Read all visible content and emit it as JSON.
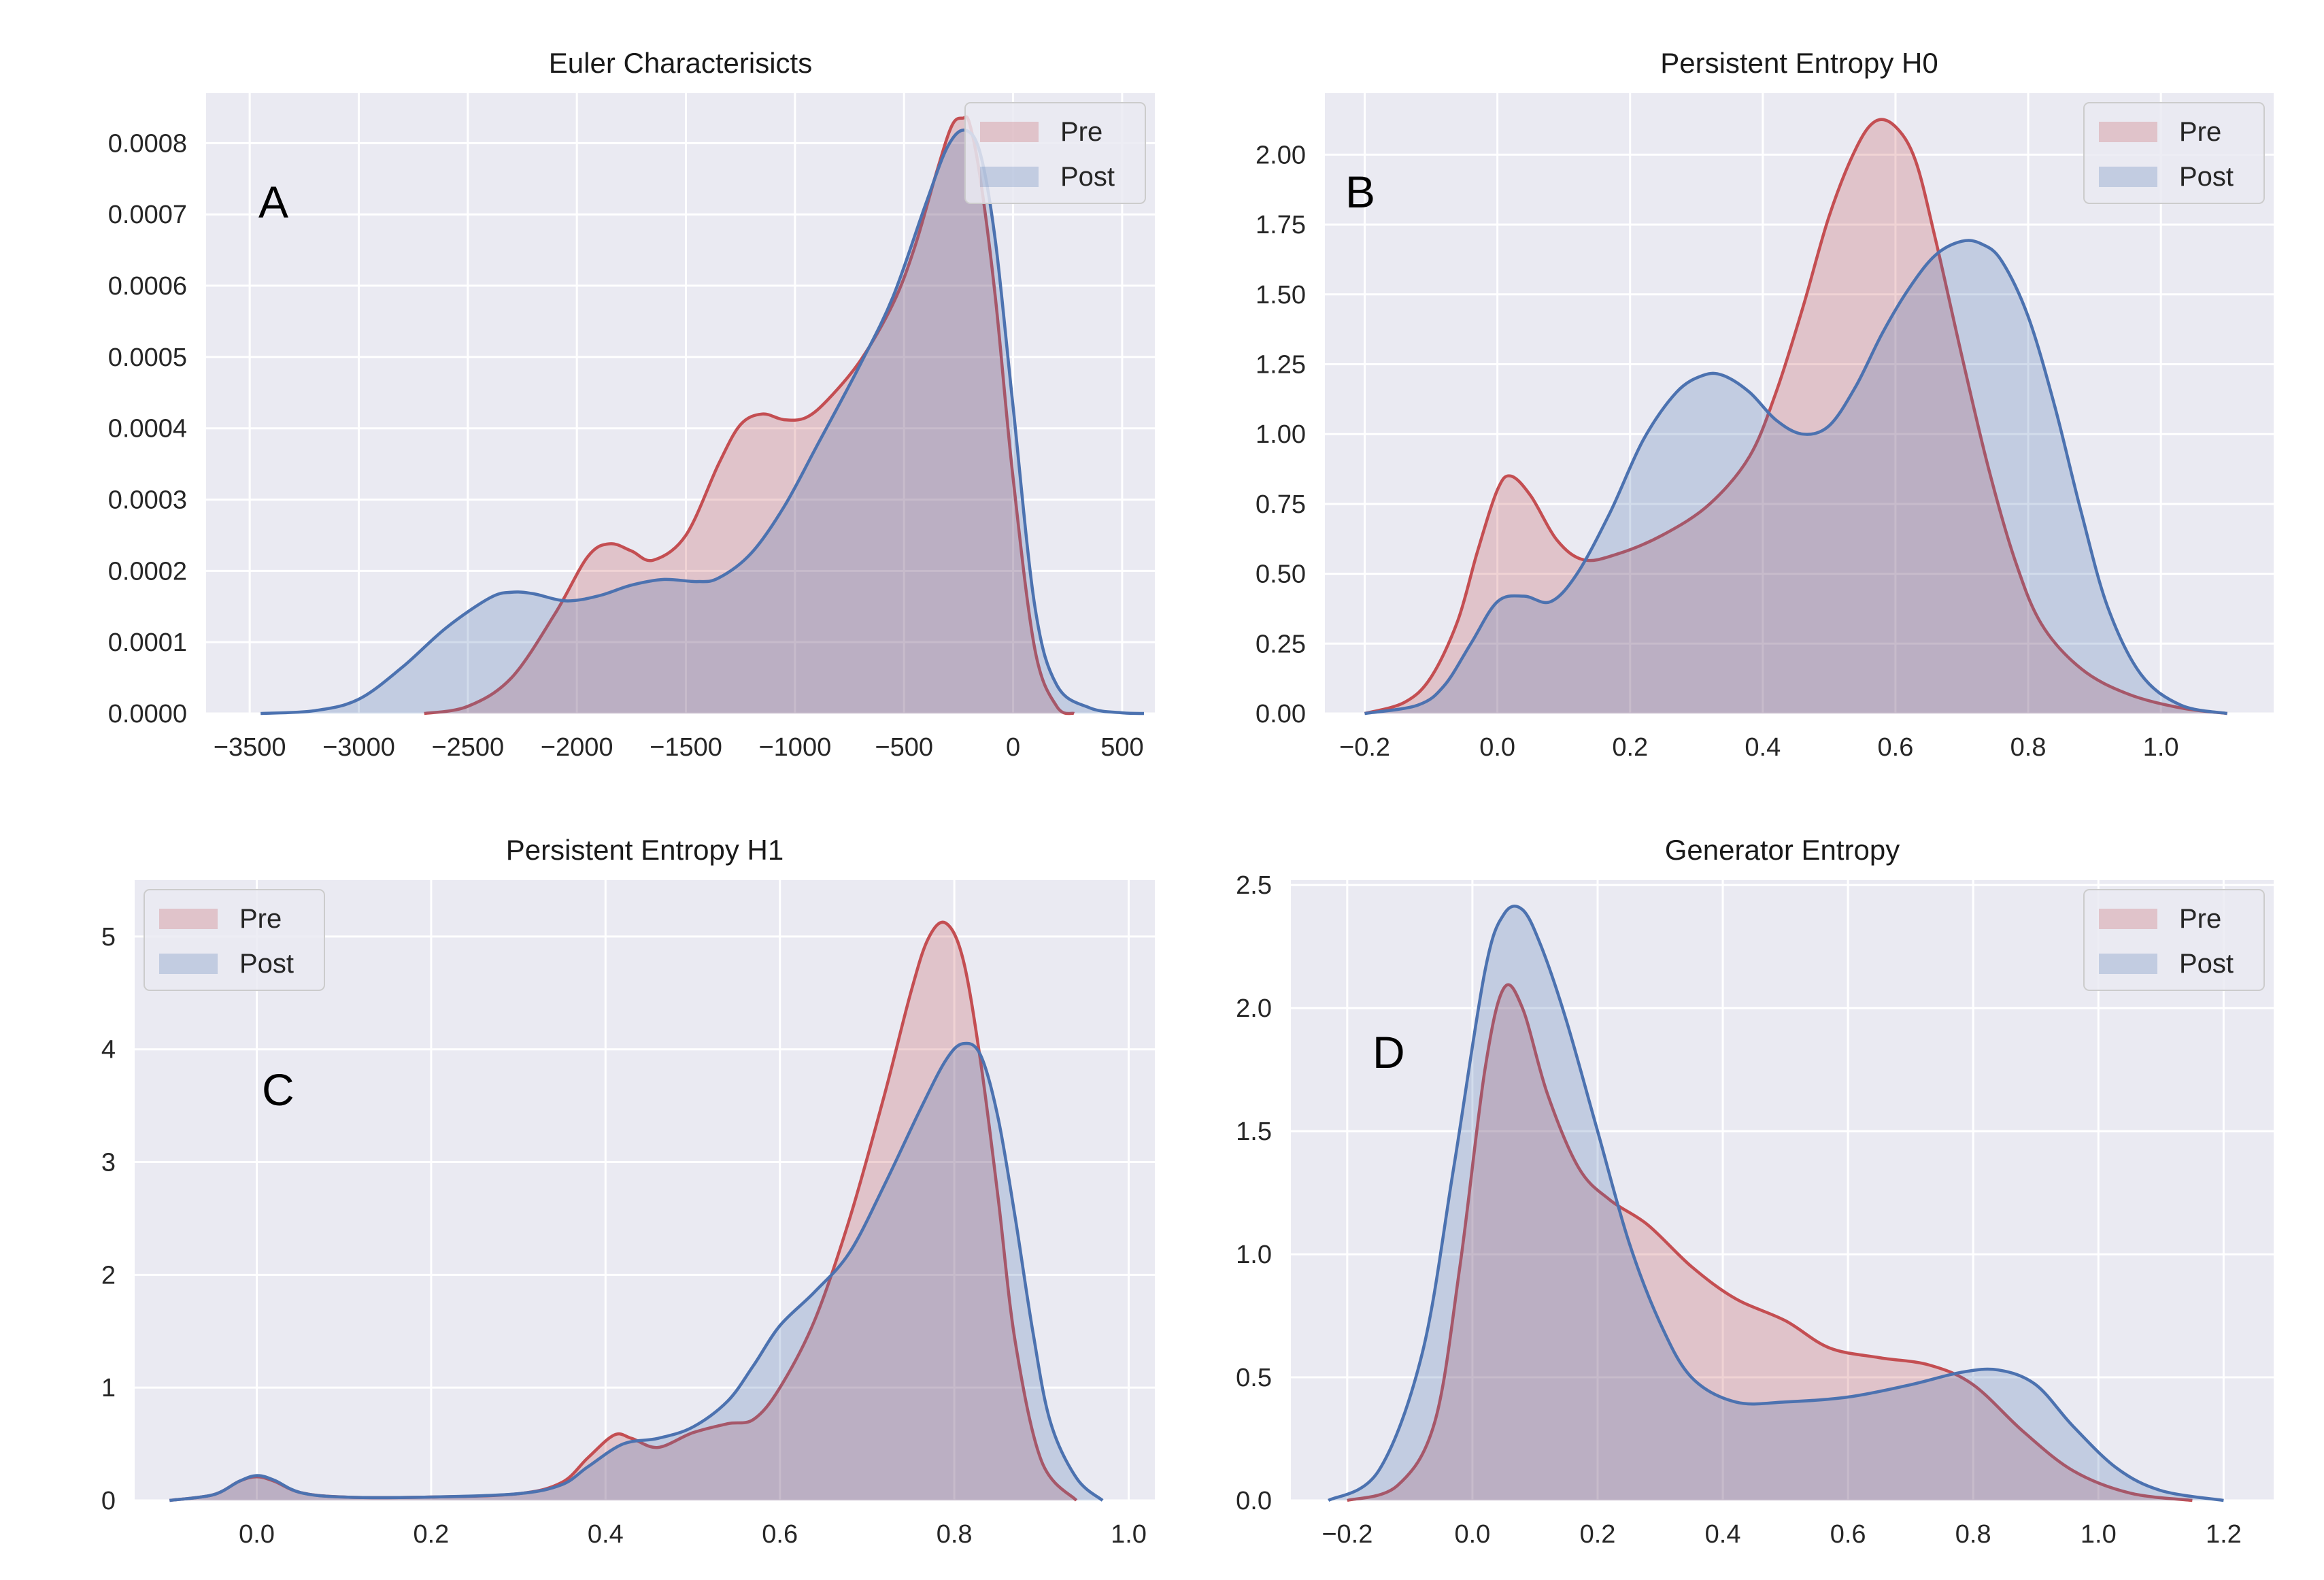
{
  "figure": {
    "background": "#ffffff",
    "axes_background": "#eaeaf2",
    "grid_color": "#ffffff"
  },
  "colors": {
    "pre_line": "#c44e52",
    "pre_fill": "#c44e52",
    "post_line": "#4c72b0",
    "post_fill": "#4c72b0"
  },
  "legend": {
    "pre": "Pre",
    "post": "Post"
  },
  "chart_data": [
    {
      "type": "area",
      "panel_label": "A",
      "title": "Euler Characterisicts",
      "xlabel": "",
      "ylabel": "",
      "xlim": [
        -3700,
        650
      ],
      "ylim": [
        0,
        0.00087
      ],
      "xticks": [
        -3500,
        -3000,
        -2500,
        -2000,
        -1500,
        -1000,
        -500,
        0,
        500
      ],
      "xtick_labels": [
        "−3500",
        "−3000",
        "−2500",
        "−2000",
        "−1500",
        "−1000",
        "−500",
        "0",
        "500"
      ],
      "yticks": [
        0,
        0.0001,
        0.0002,
        0.0003,
        0.0004,
        0.0005,
        0.0006,
        0.0007,
        0.0008
      ],
      "ytick_labels": [
        "0.0000",
        "0.0001",
        "0.0002",
        "0.0003",
        "0.0004",
        "0.0005",
        "0.0006",
        "0.0007",
        "0.0008"
      ],
      "legend_position": "top-right",
      "grid": true,
      "series": [
        {
          "name": "Pre",
          "x": [
            -2700,
            -2500,
            -2300,
            -2100,
            -1950,
            -1850,
            -1750,
            -1650,
            -1500,
            -1350,
            -1250,
            -1150,
            -1050,
            -950,
            -850,
            -700,
            -550,
            -450,
            -350,
            -280,
            -230,
            -200,
            -150,
            -80,
            0,
            100,
            200,
            280
          ],
          "y": [
            0,
            1e-05,
            5e-05,
            0.00014,
            0.00022,
            0.000238,
            0.000228,
            0.000215,
            0.00025,
            0.00035,
            0.000405,
            0.00042,
            0.000412,
            0.000415,
            0.00044,
            0.000495,
            0.000575,
            0.000655,
            0.00076,
            0.000825,
            0.000835,
            0.000828,
            0.00075,
            0.00058,
            0.00033,
            9e-05,
            1e-05,
            0
          ]
        },
        {
          "name": "Post",
          "x": [
            -3450,
            -3200,
            -3000,
            -2800,
            -2600,
            -2400,
            -2300,
            -2200,
            -2050,
            -1900,
            -1750,
            -1600,
            -1450,
            -1350,
            -1200,
            -1050,
            -900,
            -700,
            -550,
            -400,
            -300,
            -220,
            -150,
            -80,
            0,
            100,
            200,
            350,
            500,
            600
          ],
          "y": [
            0,
            4e-06,
            2e-05,
            6.5e-05,
            0.00012,
            0.000162,
            0.00017,
            0.000168,
            0.000158,
            0.000165,
            0.00018,
            0.000188,
            0.000185,
            0.00019,
            0.000225,
            0.00029,
            0.000375,
            0.00049,
            0.000585,
            0.000715,
            0.000795,
            0.000818,
            0.000785,
            0.00066,
            0.00043,
            0.00015,
            4e-05,
            8e-06,
            1e-06,
            0
          ]
        }
      ]
    },
    {
      "type": "area",
      "panel_label": "B",
      "title": "Persistent Entropy H0",
      "xlabel": "",
      "ylabel": "",
      "xlim": [
        -0.26,
        1.17
      ],
      "ylim": [
        0,
        2.22
      ],
      "xticks": [
        -0.2,
        0,
        0.2,
        0.4,
        0.6,
        0.8,
        1.0
      ],
      "xtick_labels": [
        "−0.2",
        "0.0",
        "0.2",
        "0.4",
        "0.6",
        "0.8",
        "1.0"
      ],
      "yticks": [
        0,
        0.25,
        0.5,
        0.75,
        1.0,
        1.25,
        1.5,
        1.75,
        2.0
      ],
      "ytick_labels": [
        "0.00",
        "0.25",
        "0.50",
        "0.75",
        "1.00",
        "1.25",
        "1.50",
        "1.75",
        "2.00"
      ],
      "legend_position": "top-right",
      "grid": true,
      "series": [
        {
          "name": "Pre",
          "x": [
            -0.2,
            -0.14,
            -0.1,
            -0.06,
            -0.03,
            0.0,
            0.02,
            0.05,
            0.09,
            0.13,
            0.18,
            0.25,
            0.32,
            0.38,
            0.42,
            0.46,
            0.5,
            0.54,
            0.57,
            0.6,
            0.63,
            0.66,
            0.7,
            0.74,
            0.78,
            0.82,
            0.88,
            0.95,
            1.03,
            1.1
          ],
          "y": [
            0,
            0.04,
            0.13,
            0.33,
            0.58,
            0.8,
            0.85,
            0.78,
            0.62,
            0.55,
            0.57,
            0.64,
            0.75,
            0.92,
            1.15,
            1.45,
            1.78,
            2.02,
            2.12,
            2.1,
            1.98,
            1.7,
            1.28,
            0.88,
            0.55,
            0.32,
            0.16,
            0.07,
            0.02,
            0
          ]
        },
        {
          "name": "Post",
          "x": [
            -0.2,
            -0.12,
            -0.08,
            -0.04,
            0.0,
            0.04,
            0.08,
            0.12,
            0.17,
            0.22,
            0.27,
            0.31,
            0.34,
            0.38,
            0.42,
            0.46,
            0.5,
            0.54,
            0.58,
            0.62,
            0.66,
            0.7,
            0.73,
            0.76,
            0.8,
            0.84,
            0.88,
            0.92,
            0.97,
            1.03,
            1.1
          ],
          "y": [
            0,
            0.03,
            0.1,
            0.25,
            0.4,
            0.42,
            0.4,
            0.5,
            0.72,
            0.98,
            1.15,
            1.21,
            1.21,
            1.15,
            1.05,
            1.0,
            1.03,
            1.17,
            1.36,
            1.52,
            1.64,
            1.69,
            1.68,
            1.62,
            1.42,
            1.1,
            0.72,
            0.38,
            0.14,
            0.03,
            0
          ]
        }
      ]
    },
    {
      "type": "area",
      "panel_label": "C",
      "title": "Persistent Entropy H1",
      "xlabel": "",
      "ylabel": "",
      "xlim": [
        -0.14,
        1.03
      ],
      "ylim": [
        0,
        5.5
      ],
      "xticks": [
        0.0,
        0.2,
        0.4,
        0.6,
        0.8,
        1.0
      ],
      "xtick_labels": [
        "0.0",
        "0.2",
        "0.4",
        "0.6",
        "0.8",
        "1.0"
      ],
      "yticks": [
        0,
        1,
        2,
        3,
        4,
        5
      ],
      "ytick_labels": [
        "0",
        "1",
        "2",
        "3",
        "4",
        "5"
      ],
      "legend_position": "top-left",
      "grid": true,
      "series": [
        {
          "name": "Pre",
          "x": [
            -0.1,
            -0.05,
            -0.02,
            0.0,
            0.02,
            0.05,
            0.1,
            0.2,
            0.3,
            0.35,
            0.38,
            0.41,
            0.43,
            0.46,
            0.5,
            0.54,
            0.57,
            0.6,
            0.64,
            0.68,
            0.72,
            0.75,
            0.77,
            0.79,
            0.81,
            0.83,
            0.85,
            0.87,
            0.9,
            0.94
          ],
          "y": [
            0,
            0.05,
            0.17,
            0.21,
            0.17,
            0.07,
            0.03,
            0.03,
            0.06,
            0.16,
            0.38,
            0.58,
            0.55,
            0.47,
            0.6,
            0.68,
            0.72,
            1.0,
            1.6,
            2.5,
            3.6,
            4.5,
            4.98,
            5.12,
            4.8,
            3.9,
            2.7,
            1.4,
            0.35,
            0
          ]
        },
        {
          "name": "Post",
          "x": [
            -0.1,
            -0.05,
            -0.02,
            0.0,
            0.02,
            0.05,
            0.1,
            0.2,
            0.3,
            0.35,
            0.38,
            0.42,
            0.46,
            0.5,
            0.54,
            0.57,
            0.6,
            0.64,
            0.68,
            0.72,
            0.76,
            0.79,
            0.81,
            0.83,
            0.85,
            0.87,
            0.89,
            0.91,
            0.94,
            0.97
          ],
          "y": [
            0,
            0.05,
            0.17,
            0.22,
            0.18,
            0.07,
            0.03,
            0.03,
            0.06,
            0.14,
            0.3,
            0.5,
            0.55,
            0.65,
            0.88,
            1.2,
            1.55,
            1.85,
            2.2,
            2.8,
            3.45,
            3.9,
            4.05,
            3.95,
            3.4,
            2.5,
            1.5,
            0.7,
            0.2,
            0
          ]
        }
      ]
    },
    {
      "type": "area",
      "panel_label": "D",
      "title": "Generator Entropy",
      "xlabel": "",
      "ylabel": "",
      "xlim": [
        -0.29,
        1.28
      ],
      "ylim": [
        0,
        2.52
      ],
      "xticks": [
        -0.2,
        0.0,
        0.2,
        0.4,
        0.6,
        0.8,
        1.0,
        1.2
      ],
      "xtick_labels": [
        "−0.2",
        "0.0",
        "0.2",
        "0.4",
        "0.6",
        "0.8",
        "1.0",
        "1.2"
      ],
      "yticks": [
        0,
        0.5,
        1.0,
        1.5,
        2.0,
        2.5
      ],
      "ytick_labels": [
        "0.0",
        "0.5",
        "1.0",
        "1.5",
        "2.0",
        "2.5"
      ],
      "legend_position": "top-right",
      "grid": true,
      "series": [
        {
          "name": "Pre",
          "x": [
            -0.2,
            -0.12,
            -0.06,
            -0.02,
            0.02,
            0.05,
            0.08,
            0.12,
            0.17,
            0.22,
            0.28,
            0.35,
            0.42,
            0.5,
            0.57,
            0.65,
            0.73,
            0.8,
            0.88,
            0.96,
            1.05,
            1.15
          ],
          "y": [
            0,
            0.06,
            0.32,
            0.95,
            1.75,
            2.08,
            2.0,
            1.65,
            1.35,
            1.22,
            1.12,
            0.95,
            0.82,
            0.73,
            0.62,
            0.58,
            0.55,
            0.47,
            0.28,
            0.12,
            0.03,
            0
          ]
        },
        {
          "name": "Post",
          "x": [
            -0.23,
            -0.15,
            -0.08,
            -0.03,
            0.02,
            0.05,
            0.08,
            0.11,
            0.15,
            0.2,
            0.25,
            0.3,
            0.35,
            0.42,
            0.5,
            0.6,
            0.7,
            0.78,
            0.84,
            0.9,
            0.96,
            1.03,
            1.1,
            1.2
          ],
          "y": [
            0,
            0.12,
            0.6,
            1.35,
            2.15,
            2.38,
            2.4,
            2.25,
            1.95,
            1.5,
            1.05,
            0.72,
            0.5,
            0.4,
            0.4,
            0.42,
            0.47,
            0.52,
            0.53,
            0.47,
            0.3,
            0.13,
            0.04,
            0
          ]
        }
      ]
    }
  ]
}
